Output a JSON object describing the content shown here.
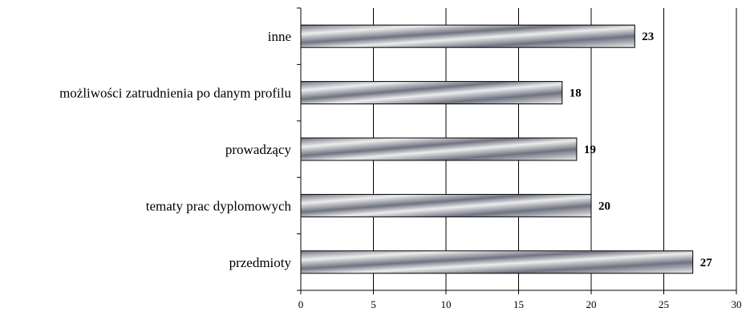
{
  "chart_data": {
    "type": "bar",
    "orientation": "horizontal",
    "categories": [
      "inne",
      "możliwości zatrudnienia po danym profilu",
      "prowadzący",
      "tematy prac dyplomowych",
      "przedmioty"
    ],
    "values": [
      23,
      18,
      19,
      20,
      27
    ],
    "data_labels": [
      "23",
      "18",
      "19",
      "20",
      "27"
    ],
    "xlim": [
      0,
      30
    ],
    "x_ticks": [
      0,
      5,
      10,
      15,
      20,
      25,
      30
    ],
    "x_tick_labels": [
      "0",
      "5",
      "10",
      "15",
      "20",
      "25",
      "30"
    ],
    "grid": "vertical",
    "legend": "none",
    "title": "",
    "xlabel": "",
    "ylabel": "",
    "colors": {
      "bar_dark": "#6f7280",
      "bar_light": "#ededee",
      "bar_stroke": "#000000",
      "grid": "#000000",
      "axis": "#000000"
    }
  }
}
